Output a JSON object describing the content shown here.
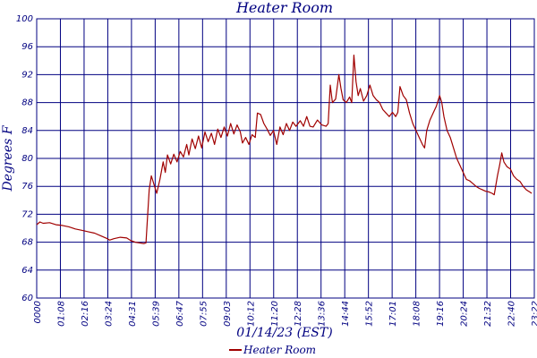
{
  "chart_data": {
    "type": "line",
    "title": "Heater Room",
    "xlabel": "01/14/23 (EST)",
    "ylabel": "Degrees F",
    "ylim": [
      60,
      100
    ],
    "yticks": [
      "60",
      "64",
      "68",
      "72",
      "76",
      "80",
      "84",
      "88",
      "92",
      "96",
      "100"
    ],
    "xticks": [
      "0000",
      "01:08",
      "02:16",
      "03:24",
      "04:31",
      "05:39",
      "06:47",
      "07:55",
      "09:03",
      "10:12",
      "11:20",
      "12:28",
      "13:36",
      "14:44",
      "15:52",
      "17:01",
      "18:08",
      "19:16",
      "20:24",
      "21:32",
      "22:40",
      "23:22"
    ],
    "grid": true,
    "legend_position": "bottom-center",
    "series": [
      {
        "name": "Heater Room",
        "color": "#a00000",
        "points": [
          [
            0,
            70.5
          ],
          [
            0.15,
            70.9
          ],
          [
            0.3,
            70.7
          ],
          [
            0.6,
            70.8
          ],
          [
            0.9,
            70.5
          ],
          [
            1.2,
            70.4
          ],
          [
            1.5,
            70.2
          ],
          [
            1.8,
            69.9
          ],
          [
            2.1,
            69.7
          ],
          [
            2.4,
            69.5
          ],
          [
            2.7,
            69.3
          ],
          [
            3.0,
            68.9
          ],
          [
            3.3,
            68.5
          ],
          [
            3.4,
            68.3
          ],
          [
            3.6,
            68.5
          ],
          [
            3.9,
            68.7
          ],
          [
            4.2,
            68.6
          ],
          [
            4.4,
            68.2
          ],
          [
            4.6,
            68.0
          ],
          [
            4.8,
            67.9
          ],
          [
            5.0,
            67.8
          ],
          [
            5.1,
            67.9
          ],
          [
            5.25,
            75.5
          ],
          [
            5.35,
            77.5
          ],
          [
            5.5,
            76.0
          ],
          [
            5.6,
            75.0
          ],
          [
            5.75,
            77.0
          ],
          [
            5.9,
            79.5
          ],
          [
            6.0,
            78.0
          ],
          [
            6.1,
            80.5
          ],
          [
            6.25,
            79.2
          ],
          [
            6.4,
            80.6
          ],
          [
            6.55,
            79.5
          ],
          [
            6.7,
            81.0
          ],
          [
            6.85,
            80.2
          ],
          [
            7.0,
            82.0
          ],
          [
            7.1,
            80.5
          ],
          [
            7.25,
            82.8
          ],
          [
            7.4,
            81.4
          ],
          [
            7.55,
            83.2
          ],
          [
            7.7,
            81.5
          ],
          [
            7.85,
            83.8
          ],
          [
            8.0,
            82.4
          ],
          [
            8.15,
            83.6
          ],
          [
            8.3,
            82.0
          ],
          [
            8.45,
            84.2
          ],
          [
            8.6,
            83.0
          ],
          [
            8.75,
            84.5
          ],
          [
            8.9,
            83.2
          ],
          [
            9.05,
            85.0
          ],
          [
            9.2,
            83.5
          ],
          [
            9.35,
            84.8
          ],
          [
            9.5,
            83.8
          ],
          [
            9.6,
            82.2
          ],
          [
            9.75,
            83.0
          ],
          [
            9.9,
            82.0
          ],
          [
            10.05,
            83.4
          ],
          [
            10.2,
            83.0
          ],
          [
            10.3,
            86.5
          ],
          [
            10.45,
            86.3
          ],
          [
            10.6,
            85.0
          ],
          [
            10.75,
            84.2
          ],
          [
            10.9,
            83.3
          ],
          [
            11.05,
            84.0
          ],
          [
            11.2,
            82.0
          ],
          [
            11.35,
            84.5
          ],
          [
            11.5,
            83.4
          ],
          [
            11.65,
            85.0
          ],
          [
            11.8,
            84.0
          ],
          [
            11.95,
            85.2
          ],
          [
            12.1,
            84.6
          ],
          [
            12.3,
            85.4
          ],
          [
            12.45,
            84.6
          ],
          [
            12.6,
            86.0
          ],
          [
            12.75,
            84.6
          ],
          [
            12.9,
            84.5
          ],
          [
            13.1,
            85.5
          ],
          [
            13.3,
            84.8
          ],
          [
            13.5,
            84.6
          ],
          [
            13.6,
            85.0
          ],
          [
            13.62,
            86.0
          ],
          [
            13.7,
            90.5
          ],
          [
            13.8,
            88.0
          ],
          [
            13.95,
            88.5
          ],
          [
            14.1,
            92.0
          ],
          [
            14.2,
            90.0
          ],
          [
            14.3,
            88.4
          ],
          [
            14.45,
            88.0
          ],
          [
            14.6,
            88.8
          ],
          [
            14.7,
            88.0
          ],
          [
            14.8,
            94.8
          ],
          [
            14.9,
            91.0
          ],
          [
            15.0,
            89.0
          ],
          [
            15.1,
            90.0
          ],
          [
            15.25,
            88.2
          ],
          [
            15.4,
            89.0
          ],
          [
            15.55,
            90.5
          ],
          [
            15.7,
            89.0
          ],
          [
            15.85,
            88.4
          ],
          [
            16.0,
            88.0
          ],
          [
            16.15,
            87.0
          ],
          [
            16.3,
            86.5
          ],
          [
            16.45,
            86.0
          ],
          [
            16.6,
            86.6
          ],
          [
            16.75,
            86.0
          ],
          [
            16.85,
            86.6
          ],
          [
            16.95,
            90.3
          ],
          [
            17.1,
            89.0
          ],
          [
            17.25,
            88.4
          ],
          [
            17.4,
            86.5
          ],
          [
            17.55,
            85.0
          ],
          [
            17.7,
            84.0
          ],
          [
            17.85,
            83.0
          ],
          [
            18.0,
            82.0
          ],
          [
            18.1,
            81.5
          ],
          [
            18.2,
            84.0
          ],
          [
            18.35,
            85.5
          ],
          [
            18.5,
            86.5
          ],
          [
            18.65,
            87.5
          ],
          [
            18.8,
            89.0
          ],
          [
            18.9,
            88.0
          ],
          [
            19.0,
            86.0
          ],
          [
            19.15,
            84.0
          ],
          [
            19.3,
            83.0
          ],
          [
            19.45,
            81.5
          ],
          [
            19.6,
            80.0
          ],
          [
            19.75,
            79.0
          ],
          [
            19.9,
            78.0
          ],
          [
            20.05,
            77.0
          ],
          [
            20.2,
            76.8
          ],
          [
            20.35,
            76.4
          ],
          [
            20.5,
            76.0
          ],
          [
            20.65,
            75.7
          ],
          [
            20.8,
            75.5
          ],
          [
            20.95,
            75.3
          ],
          [
            21.1,
            75.2
          ],
          [
            21.25,
            75.0
          ],
          [
            21.35,
            74.8
          ],
          [
            21.5,
            77.5
          ],
          [
            21.6,
            79.0
          ],
          [
            21.7,
            80.8
          ],
          [
            21.8,
            79.5
          ],
          [
            21.95,
            78.8
          ],
          [
            22.1,
            78.5
          ],
          [
            22.25,
            77.5
          ],
          [
            22.4,
            77.0
          ],
          [
            22.55,
            76.7
          ],
          [
            22.7,
            76.0
          ],
          [
            22.85,
            75.5
          ],
          [
            23.0,
            75.2
          ],
          [
            23.1,
            75.0
          ]
        ]
      }
    ]
  }
}
